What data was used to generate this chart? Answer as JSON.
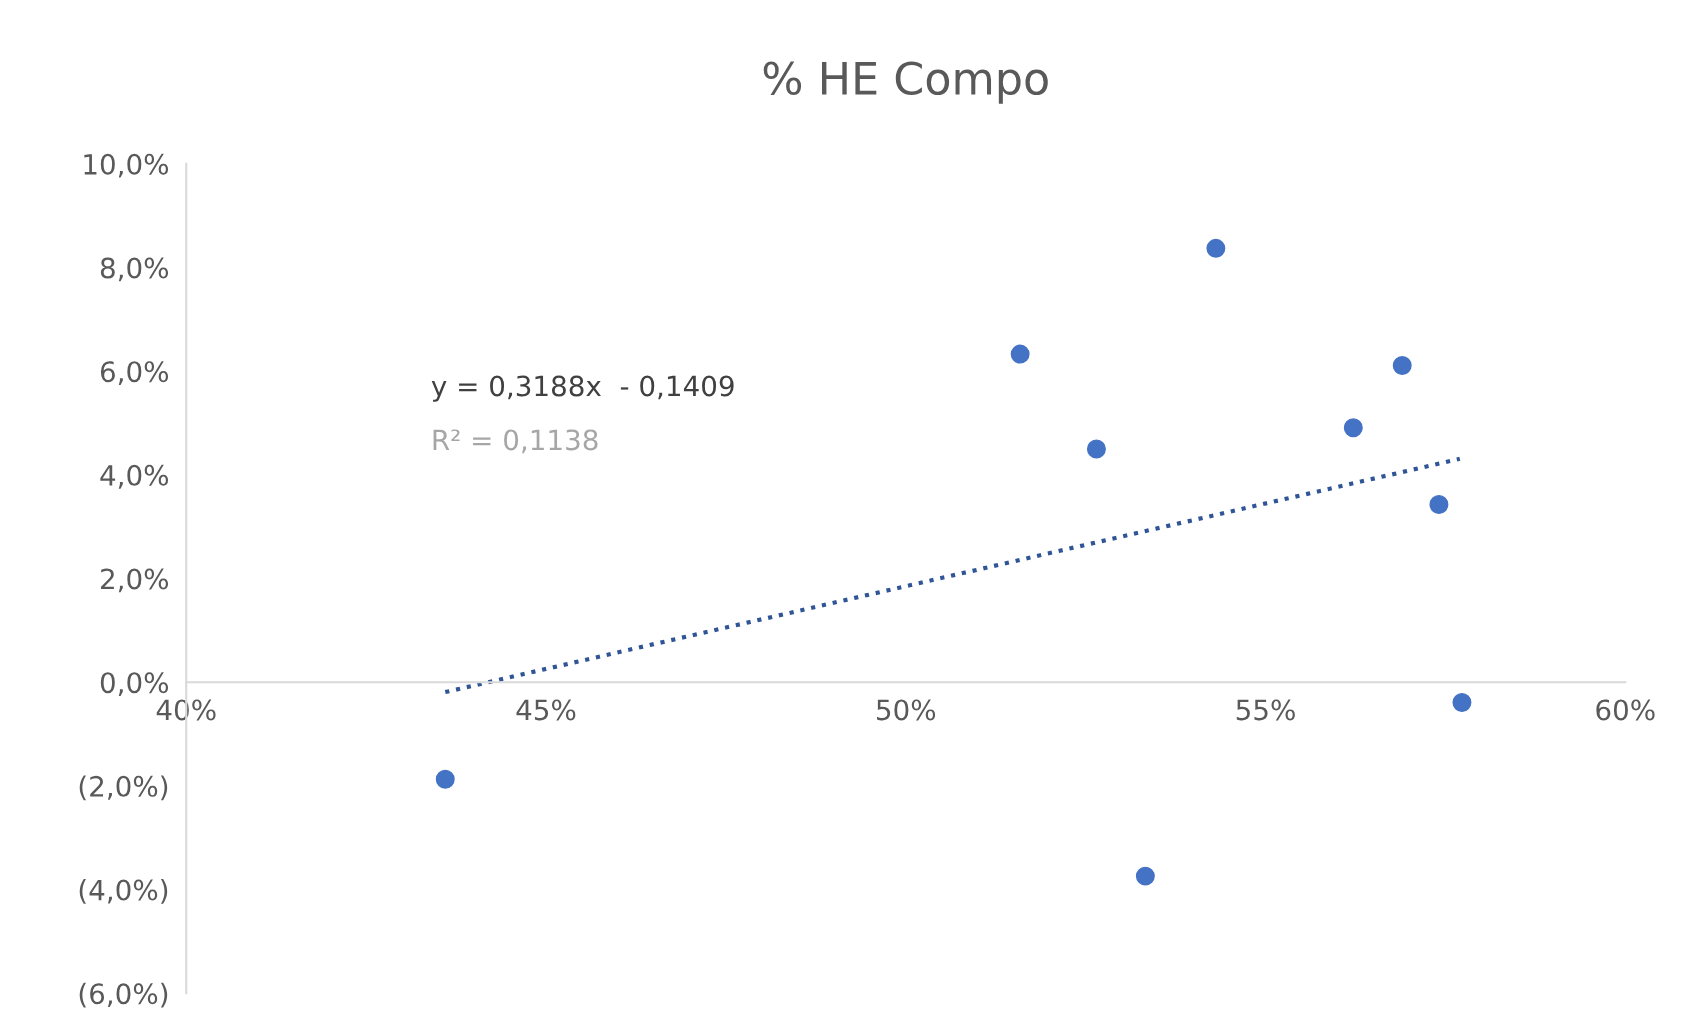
{
  "chart_data": {
    "type": "scatter",
    "title": "% HE Compo",
    "series": [
      {
        "color": "#4472c4",
        "marker": "circle",
        "x": [
          0.436,
          0.5159,
          0.5265,
          0.5333,
          0.5431,
          0.5622,
          0.569,
          0.5741,
          0.5773
        ],
        "values": [
          -0.0187,
          0.0633,
          0.045,
          -0.0374,
          0.0837,
          0.0491,
          0.0611,
          0.0343,
          -0.0039
        ]
      },
      {
        "type": "line",
        "color": "#2f5597",
        "line_style": "dotted",
        "marker": "none",
        "x": [
          0.436,
          0.577
        ],
        "values": [
          -0.0019,
          0.0431
        ]
      }
    ],
    "xlim": [
      0.4,
      0.6
    ],
    "xticks": [
      {
        "value": 0.4,
        "label": "40%"
      },
      {
        "value": 0.45,
        "label": "45%"
      },
      {
        "value": 0.5,
        "label": "50%"
      },
      {
        "value": 0.55,
        "label": "55%"
      },
      {
        "value": 0.6,
        "label": "60%"
      }
    ],
    "ylim": [
      -0.06,
      0.1
    ],
    "yticks": [
      {
        "value": -0.06,
        "label": "(6,0%)"
      },
      {
        "value": -0.04,
        "label": "(4,0%)"
      },
      {
        "value": -0.02,
        "label": "(2,0%)"
      },
      {
        "value": 0,
        "label": "0,0%"
      },
      {
        "value": 0.02,
        "label": "2,0%"
      },
      {
        "value": 0.04,
        "label": "4,0%"
      },
      {
        "value": 0.06,
        "label": "6,0%"
      },
      {
        "value": 0.08,
        "label": "8,0%"
      },
      {
        "value": 0.1,
        "label": "10,0%"
      }
    ],
    "annotations": [
      "y = 0,3188x  - 0,1409",
      "R² = 0,1138"
    ],
    "grid": false,
    "legend": false
  }
}
